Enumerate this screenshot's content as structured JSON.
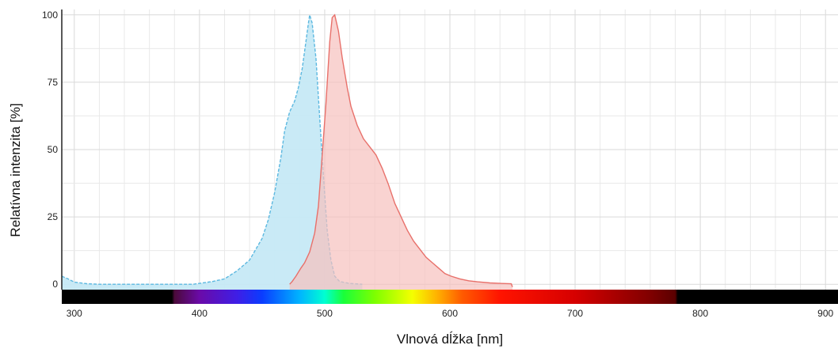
{
  "chart_data": {
    "type": "area",
    "xlabel": "Vlnová dĺžka [nm]",
    "ylabel": "Relatívna intenzita [%]",
    "xlim": [
      290,
      910
    ],
    "ylim": [
      -2,
      102
    ],
    "x_ticks": [
      300,
      400,
      500,
      600,
      700,
      800,
      900
    ],
    "y_ticks": [
      0,
      25,
      50,
      75,
      100
    ],
    "grid": true,
    "spectrum_bar": {
      "stops": [
        {
          "nm": 290,
          "color": "#000000"
        },
        {
          "nm": 378,
          "color": "#000000"
        },
        {
          "nm": 380,
          "color": "#4b0a3a"
        },
        {
          "nm": 400,
          "color": "#6a0aa8"
        },
        {
          "nm": 430,
          "color": "#3f1ee6"
        },
        {
          "nm": 450,
          "color": "#0a3cff"
        },
        {
          "nm": 480,
          "color": "#00b4ff"
        },
        {
          "nm": 500,
          "color": "#00ffd2"
        },
        {
          "nm": 515,
          "color": "#19ff3a"
        },
        {
          "nm": 540,
          "color": "#7dff00"
        },
        {
          "nm": 570,
          "color": "#f5ff00"
        },
        {
          "nm": 590,
          "color": "#ffb000"
        },
        {
          "nm": 610,
          "color": "#ff5a00"
        },
        {
          "nm": 640,
          "color": "#ff1400"
        },
        {
          "nm": 700,
          "color": "#d60000"
        },
        {
          "nm": 760,
          "color": "#800000"
        },
        {
          "nm": 780,
          "color": "#5a0000"
        },
        {
          "nm": 782,
          "color": "#000000"
        },
        {
          "nm": 910,
          "color": "#000000"
        }
      ]
    },
    "series": [
      {
        "color": "#5cb8e0",
        "fill": "#c6e9f6",
        "dashed": true,
        "points": [
          [
            290,
            3
          ],
          [
            295,
            2
          ],
          [
            300,
            0.8
          ],
          [
            310,
            0.2
          ],
          [
            320,
            0
          ],
          [
            380,
            0
          ],
          [
            395,
            0
          ],
          [
            410,
            1
          ],
          [
            420,
            2
          ],
          [
            430,
            5
          ],
          [
            440,
            9
          ],
          [
            450,
            17
          ],
          [
            455,
            24
          ],
          [
            460,
            34
          ],
          [
            465,
            47
          ],
          [
            468,
            57
          ],
          [
            472,
            64
          ],
          [
            476,
            68
          ],
          [
            479,
            73
          ],
          [
            482,
            80
          ],
          [
            485,
            90
          ],
          [
            487,
            97
          ],
          [
            488,
            100
          ],
          [
            490,
            97
          ],
          [
            493,
            84
          ],
          [
            496,
            62
          ],
          [
            499,
            40
          ],
          [
            502,
            20
          ],
          [
            505,
            9
          ],
          [
            508,
            3
          ],
          [
            512,
            1
          ],
          [
            520,
            0.3
          ],
          [
            530,
            0
          ]
        ]
      },
      {
        "color": "#e8706a",
        "fill": "#f7c1bd",
        "dashed": false,
        "points": [
          [
            472,
            0
          ],
          [
            474,
            1
          ],
          [
            477,
            3
          ],
          [
            481,
            6
          ],
          [
            484,
            8
          ],
          [
            488,
            12
          ],
          [
            492,
            19
          ],
          [
            495,
            29
          ],
          [
            498,
            48
          ],
          [
            501,
            67
          ],
          [
            504,
            90
          ],
          [
            506,
            99
          ],
          [
            508,
            100
          ],
          [
            511,
            94
          ],
          [
            514,
            84
          ],
          [
            518,
            73
          ],
          [
            521,
            66
          ],
          [
            526,
            59
          ],
          [
            531,
            54
          ],
          [
            536,
            51
          ],
          [
            541,
            48
          ],
          [
            546,
            43
          ],
          [
            551,
            37
          ],
          [
            556,
            30
          ],
          [
            561,
            25
          ],
          [
            566,
            20
          ],
          [
            571,
            16
          ],
          [
            576,
            13
          ],
          [
            581,
            10
          ],
          [
            586,
            8
          ],
          [
            591,
            6
          ],
          [
            596,
            4
          ],
          [
            601,
            3
          ],
          [
            608,
            2
          ],
          [
            615,
            1.3
          ],
          [
            622,
            0.9
          ],
          [
            632,
            0.5
          ],
          [
            642,
            0.3
          ],
          [
            649,
            0.2
          ],
          [
            650,
            -1
          ]
        ]
      }
    ]
  }
}
